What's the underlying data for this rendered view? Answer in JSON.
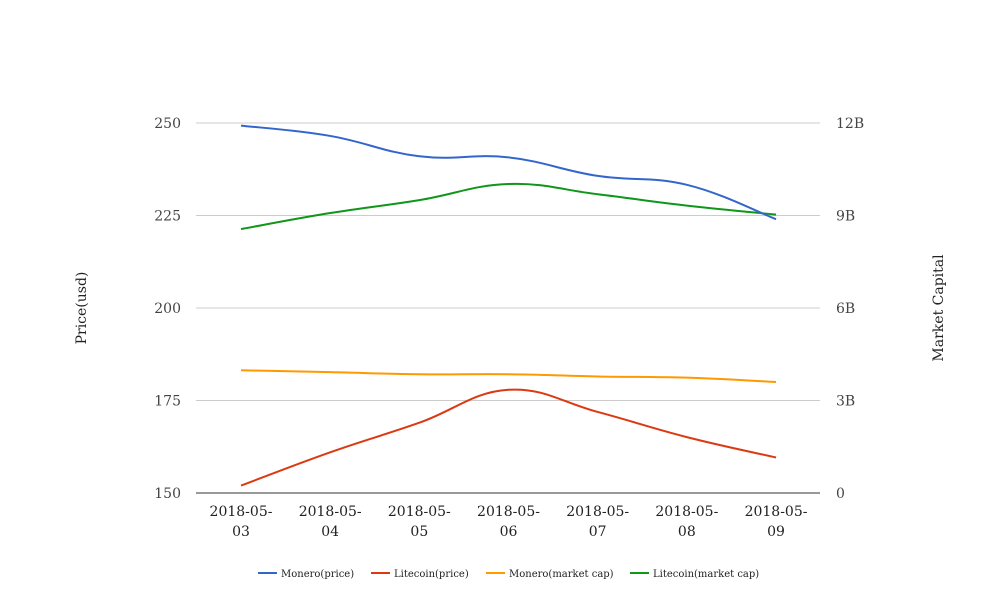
{
  "chart_data": {
    "type": "line",
    "title": "",
    "xlabel": "",
    "ylabel": "Price(usd)",
    "y2label": "Market Capital",
    "x": [
      "2018-05-03",
      "2018-05-04",
      "2018-05-05",
      "2018-05-06",
      "2018-05-07",
      "2018-05-08",
      "2018-05-09"
    ],
    "x_tick_labels": [
      [
        "2018-05-",
        "03"
      ],
      [
        "2018-05-",
        "04"
      ],
      [
        "2018-05-",
        "05"
      ],
      [
        "2018-05-",
        "06"
      ],
      [
        "2018-05-",
        "07"
      ],
      [
        "2018-05-",
        "08"
      ],
      [
        "2018-05-",
        "09"
      ]
    ],
    "ylim": [
      150,
      250
    ],
    "y_ticks": [
      250,
      225,
      200,
      175,
      150
    ],
    "y2lim": [
      0,
      12000000000
    ],
    "y2_ticks": [
      12000000000,
      9000000000,
      6000000000,
      3000000000,
      0
    ],
    "y2_tick_labels": [
      "12B",
      "9B",
      "6B",
      "3B",
      "0"
    ],
    "grid": true,
    "legend_position": "bottom",
    "series": [
      {
        "name": "Monero(price)",
        "axis": "left",
        "color": "#3366cc",
        "values": [
          249.3,
          246.5,
          241.0,
          240.7,
          235.7,
          233.3,
          224.0
        ]
      },
      {
        "name": "Litecoin(price)",
        "axis": "left",
        "color": "#dc3912",
        "values": [
          152.0,
          161.0,
          169.0,
          177.9,
          171.9,
          165.1,
          159.6
        ]
      },
      {
        "name": "Monero(market cap)",
        "axis": "right",
        "color": "#ff9900",
        "values": [
          3980000000,
          3920000000,
          3850000000,
          3850000000,
          3780000000,
          3740000000,
          3600000000
        ]
      },
      {
        "name": "Litecoin(market cap)",
        "axis": "right",
        "color": "#109618",
        "values": [
          8560000000,
          9080000000,
          9500000000,
          10020000000,
          9690000000,
          9320000000,
          9030000000
        ]
      }
    ]
  }
}
